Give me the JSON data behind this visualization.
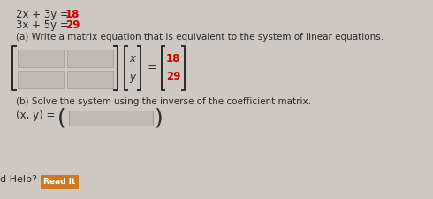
{
  "bg_color": "#cdc8c0",
  "text_color": "#2a2a2a",
  "red_color": "#cc0000",
  "eq1_black": "2x + 3y = ",
  "eq1_red": "18",
  "eq2_black": "3x + 5y = ",
  "eq2_red": "29",
  "part_a_label": "(a) Write a matrix equation that is equivalent to the system of linear equations.",
  "part_b_label": "(b) Solve the system using the inverse of the coefficient matrix.",
  "xy_label": "(x, y) =",
  "help_label": "d Help?",
  "read_it_label": "Read It",
  "matrix_x_label": "x",
  "matrix_y_label": "y",
  "matrix_18": "18",
  "matrix_29": "29",
  "read_it_bg": "#cc7722",
  "read_it_color": "#ffffff",
  "input_box_color": "#bfb9b0",
  "input_box_edge": "#999999",
  "fig_w": 4.9,
  "fig_h": 2.25,
  "dpi": 100
}
